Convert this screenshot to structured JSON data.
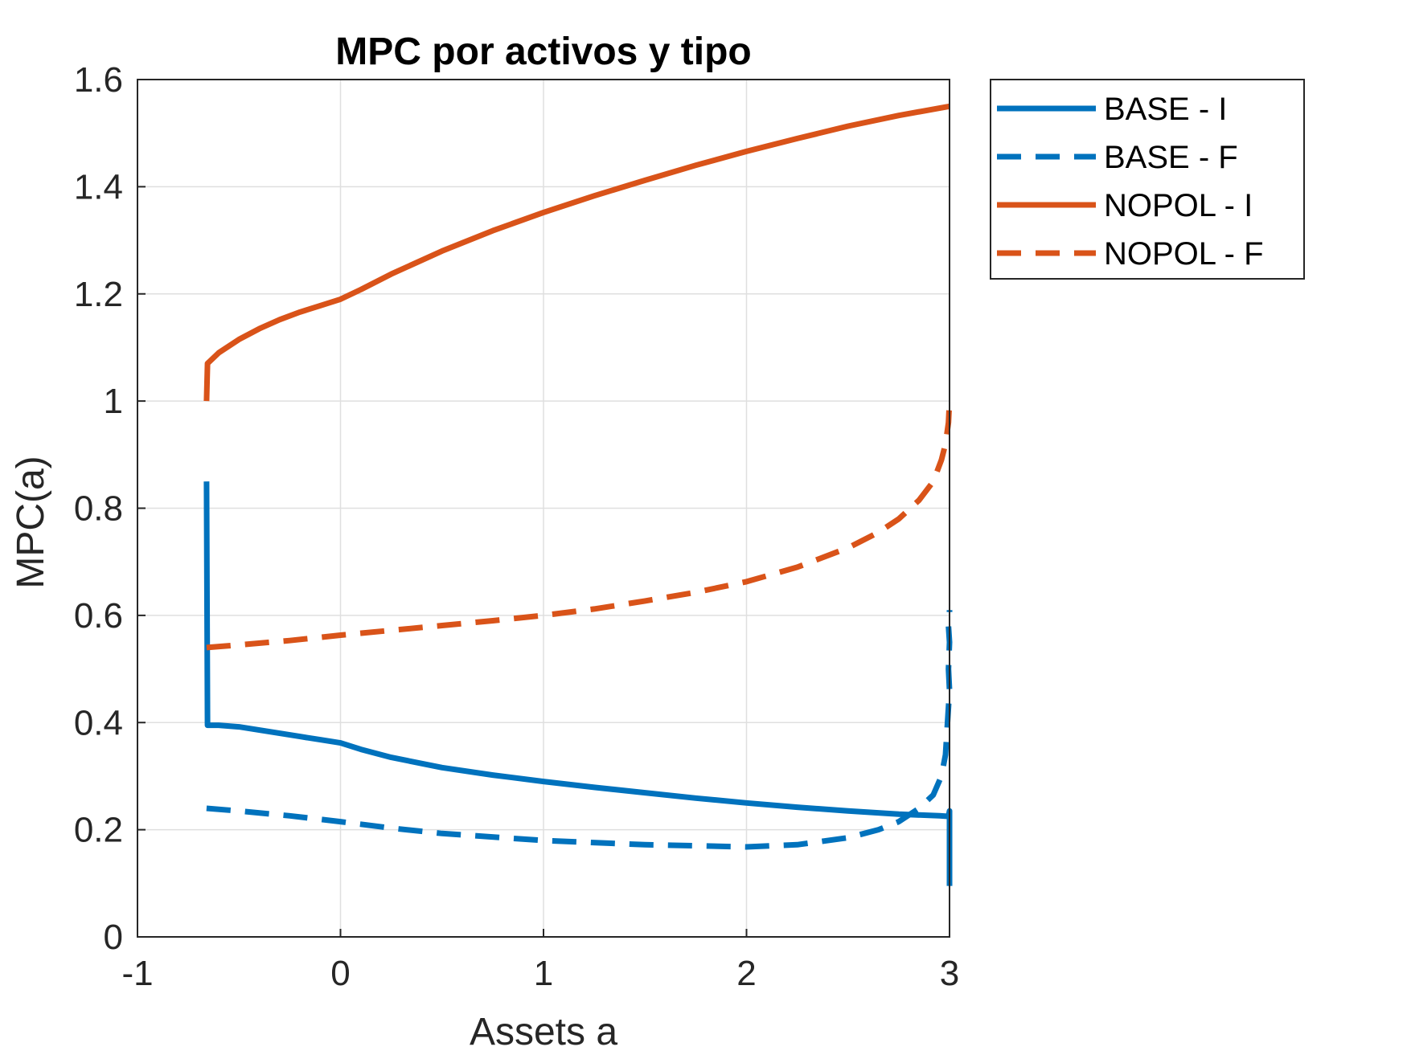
{
  "chart_data": {
    "type": "line",
    "title": "MPC por activos y tipo",
    "xlabel": "Assets a",
    "ylabel": "MPC(a)",
    "xlim": [
      -1,
      3
    ],
    "ylim": [
      0,
      1.6
    ],
    "xticks": [
      -1,
      0,
      1,
      2,
      3
    ],
    "xtick_labels": [
      "-1",
      "0",
      "1",
      "2",
      "3"
    ],
    "yticks": [
      0,
      0.2,
      0.4,
      0.6,
      0.8,
      1,
      1.2,
      1.4,
      1.6
    ],
    "ytick_labels": [
      "0",
      "0.2",
      "0.4",
      "0.6",
      "0.8",
      "1",
      "1.2",
      "1.4",
      "1.6"
    ],
    "grid": true,
    "legend_position": "outside-top-right",
    "series": [
      {
        "name": "BASE - I",
        "color": "#0072BD",
        "style": "solid",
        "x": [
          -0.66,
          -0.655,
          -0.65,
          -0.6,
          -0.5,
          -0.4,
          -0.3,
          -0.2,
          -0.1,
          0,
          0.1,
          0.25,
          0.5,
          0.75,
          1,
          1.25,
          1.5,
          1.75,
          2,
          2.25,
          2.5,
          2.75,
          2.95,
          2.995,
          3.0,
          3.0
        ],
        "y": [
          0.85,
          0.395,
          0.395,
          0.395,
          0.392,
          0.386,
          0.38,
          0.374,
          0.368,
          0.362,
          0.35,
          0.335,
          0.316,
          0.302,
          0.29,
          0.279,
          0.269,
          0.259,
          0.25,
          0.242,
          0.235,
          0.229,
          0.226,
          0.225,
          0.235,
          0.095
        ]
      },
      {
        "name": "BASE - F",
        "color": "#0072BD",
        "style": "dashed",
        "x": [
          -0.66,
          -0.5,
          -0.25,
          0,
          0.25,
          0.5,
          1,
          1.5,
          2,
          2.25,
          2.5,
          2.65,
          2.75,
          2.85,
          2.92,
          2.96,
          2.98,
          2.99,
          3.0,
          2.995,
          3.0,
          2.995,
          3.0,
          3.0
        ],
        "y": [
          0.24,
          0.235,
          0.226,
          0.215,
          0.203,
          0.193,
          0.18,
          0.172,
          0.168,
          0.172,
          0.185,
          0.2,
          0.215,
          0.24,
          0.265,
          0.3,
          0.34,
          0.4,
          0.46,
          0.5,
          0.55,
          0.58,
          0.6,
          0.61
        ]
      },
      {
        "name": "NOPOL - I",
        "color": "#D95319",
        "style": "solid",
        "x": [
          -0.66,
          -0.655,
          -0.65,
          -0.6,
          -0.5,
          -0.4,
          -0.3,
          -0.2,
          -0.1,
          0,
          0.1,
          0.25,
          0.5,
          0.75,
          1,
          1.25,
          1.5,
          1.75,
          2,
          2.25,
          2.5,
          2.75,
          3.0
        ],
        "y": [
          1.0,
          1.07,
          1.072,
          1.09,
          1.115,
          1.135,
          1.152,
          1.166,
          1.178,
          1.19,
          1.208,
          1.237,
          1.28,
          1.318,
          1.352,
          1.383,
          1.412,
          1.44,
          1.466,
          1.49,
          1.513,
          1.533,
          1.55
        ]
      },
      {
        "name": "NOPOL - F",
        "color": "#D95319",
        "style": "dashed",
        "x": [
          -0.66,
          -0.5,
          -0.25,
          0,
          0.25,
          0.5,
          0.75,
          1,
          1.25,
          1.5,
          1.75,
          2,
          2.25,
          2.5,
          2.65,
          2.75,
          2.85,
          2.92,
          2.96,
          2.98,
          2.995,
          3.0
        ],
        "y": [
          0.54,
          0.545,
          0.553,
          0.563,
          0.572,
          0.581,
          0.59,
          0.6,
          0.612,
          0.627,
          0.643,
          0.663,
          0.69,
          0.726,
          0.755,
          0.78,
          0.815,
          0.85,
          0.89,
          0.92,
          0.96,
          1.0
        ]
      }
    ]
  }
}
